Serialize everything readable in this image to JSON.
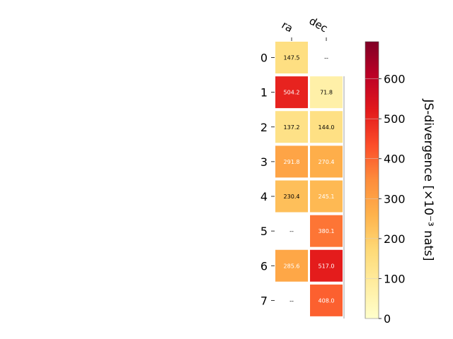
{
  "chart_data": {
    "type": "heatmap",
    "columns": [
      "ra",
      "dec"
    ],
    "rows": [
      "0",
      "1",
      "2",
      "3",
      "4",
      "5",
      "6",
      "7"
    ],
    "values": [
      [
        147.5,
        null
      ],
      [
        504.2,
        71.8
      ],
      [
        137.2,
        144.0
      ],
      [
        291.8,
        270.4
      ],
      [
        230.4,
        245.1
      ],
      [
        null,
        380.1
      ],
      [
        285.6,
        517.0
      ],
      [
        null,
        408.0
      ]
    ],
    "cell_labels": [
      [
        "147.5",
        "--"
      ],
      [
        "504.2",
        "71.8"
      ],
      [
        "137.2",
        "144.0"
      ],
      [
        "291.8",
        "270.4"
      ],
      [
        "230.4",
        "245.1"
      ],
      [
        "--",
        "380.1"
      ],
      [
        "285.6",
        "517.0"
      ],
      [
        "--",
        "408.0"
      ]
    ],
    "colorbar": {
      "label": "JS-divergence [×10⁻³ nats]",
      "range": [
        0,
        693
      ],
      "ticks": [
        "0",
        "100",
        "200",
        "300",
        "400",
        "500",
        "600"
      ],
      "tick_values": [
        0,
        100,
        200,
        300,
        400,
        500,
        600
      ],
      "colormap": "YlOrRd"
    },
    "colormap_stops": [
      "#ffffcc",
      "#ffeda0",
      "#fed976",
      "#feb24c",
      "#fd8d3c",
      "#fc4e2a",
      "#e31a1c",
      "#bd0026",
      "#800026"
    ],
    "grid": false,
    "legend": "none"
  }
}
